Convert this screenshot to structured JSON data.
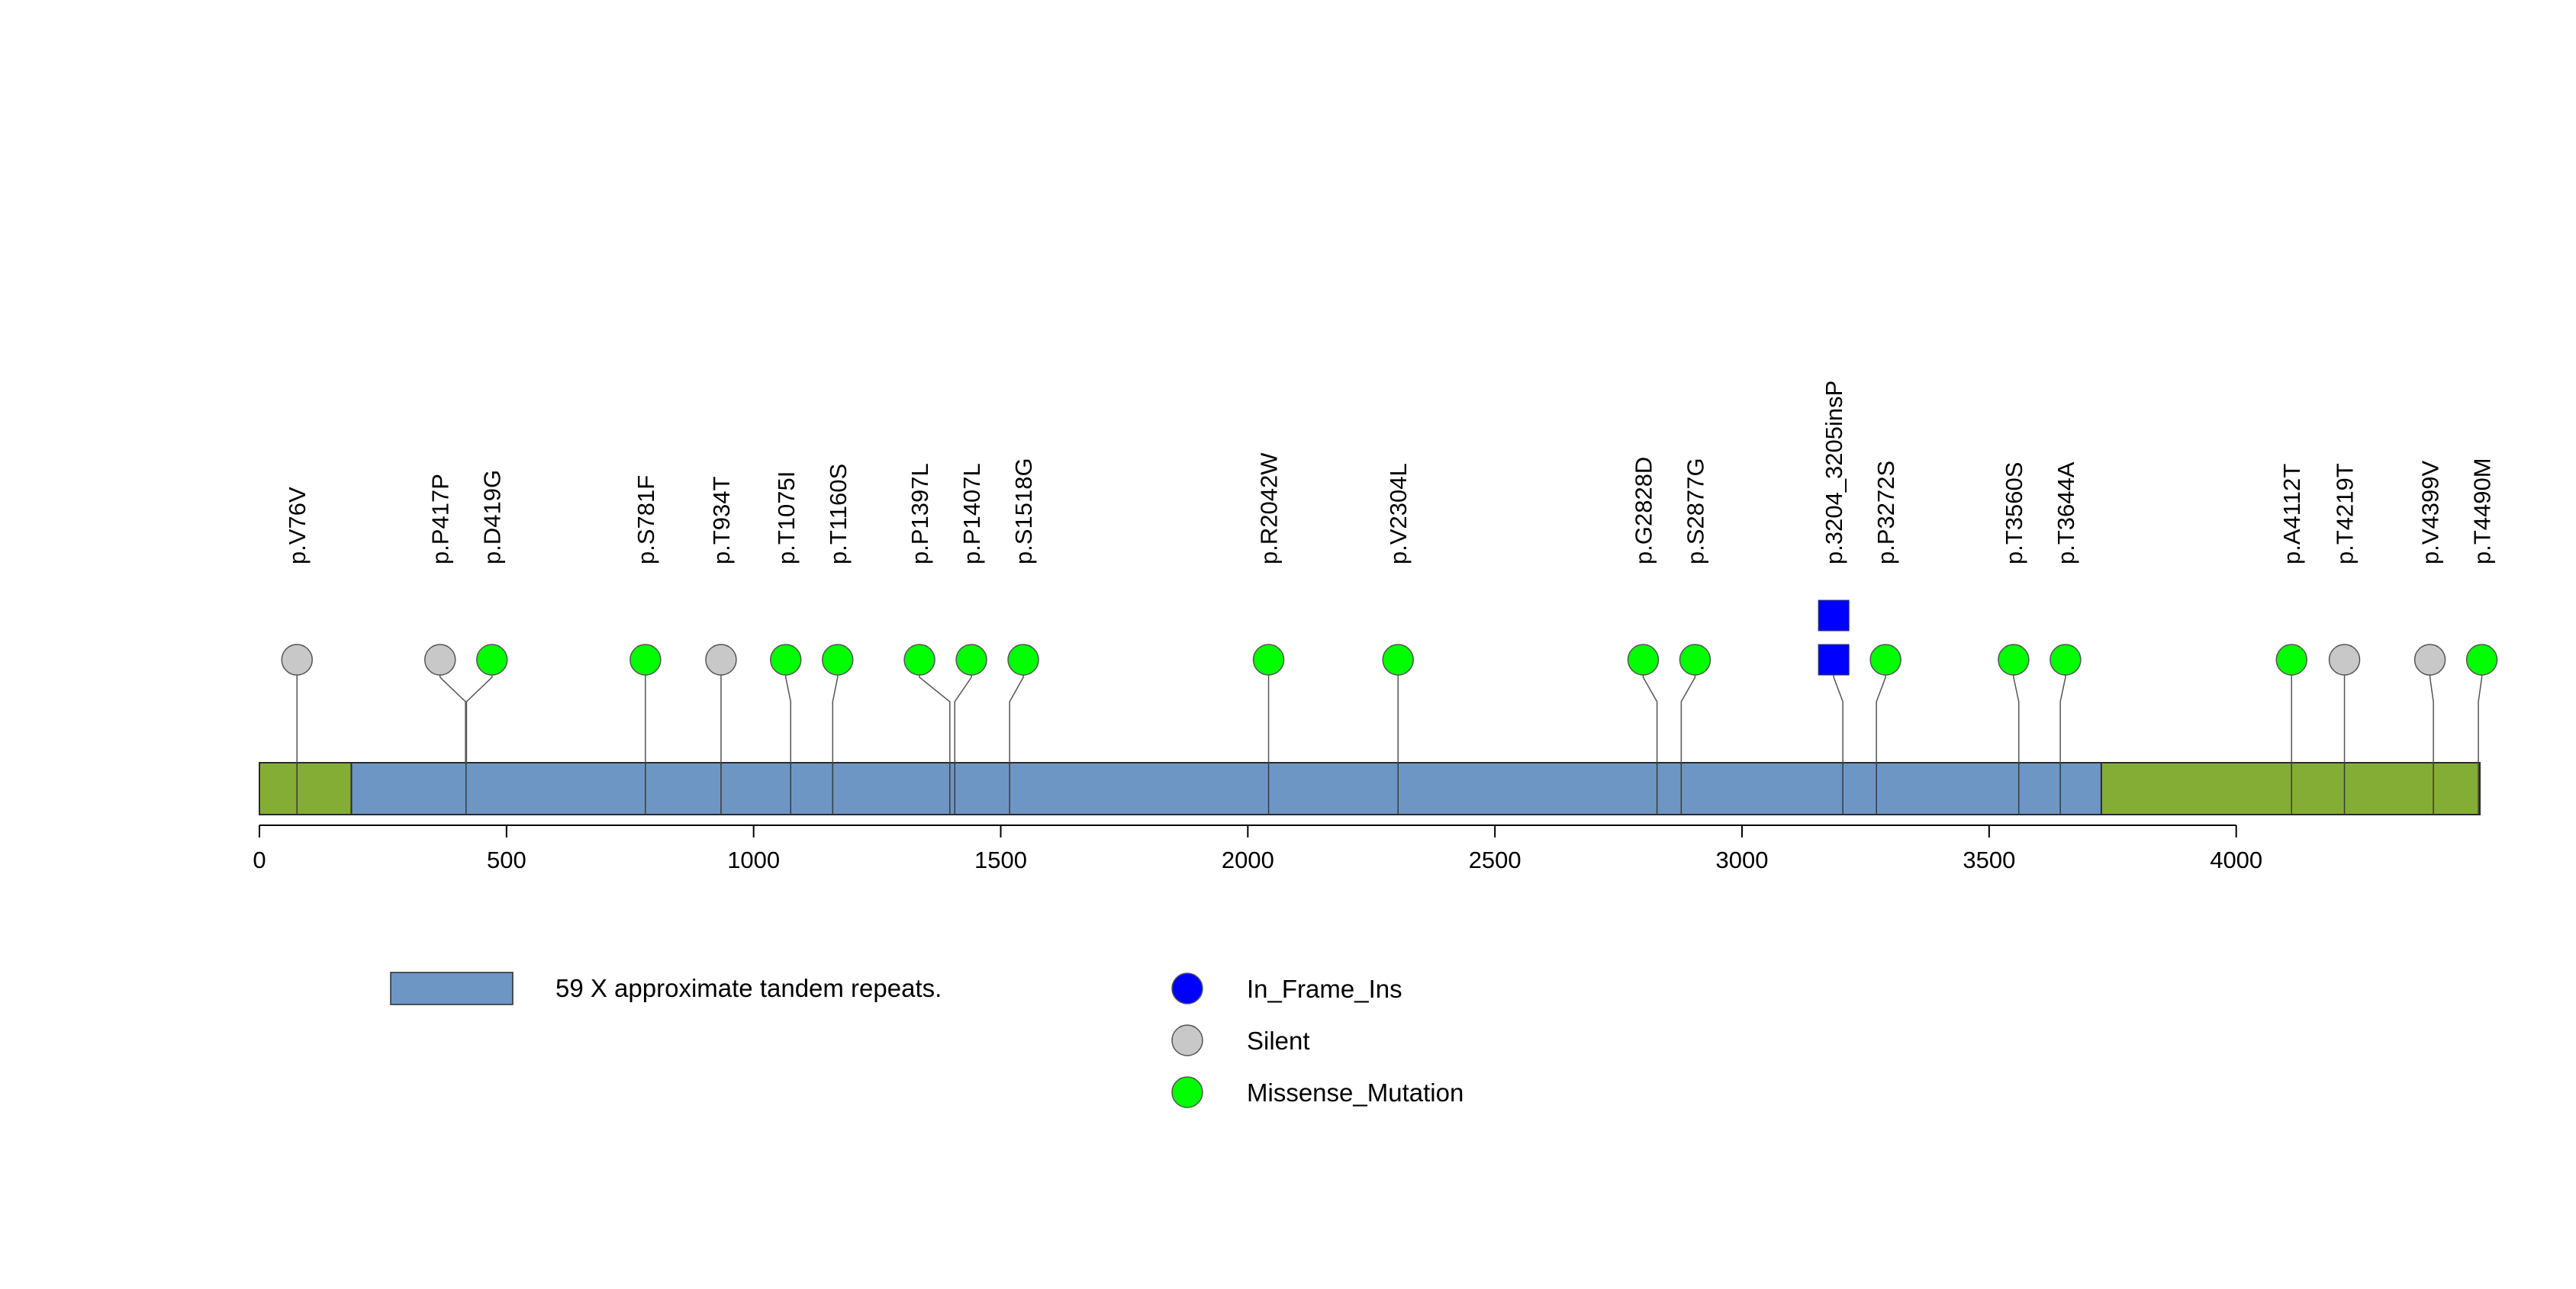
{
  "chart_data": {
    "type": "lollipop",
    "title": "",
    "xlabel": "",
    "ylabel": "",
    "xlim": [
      0,
      4493
    ],
    "ticks": [
      "0",
      "500",
      "1000",
      "1500",
      "2000",
      "2500",
      "3000",
      "3500",
      "4000"
    ],
    "tick_values": [
      0,
      500,
      1000,
      1500,
      2000,
      2500,
      3000,
      3500,
      4000
    ],
    "protein_length": 4493,
    "domains": [
      {
        "name": "59 X approximate tandem repeats.",
        "start": 186,
        "end": 3727,
        "color": "#6e96c4"
      }
    ],
    "protein_color": "#84ad35",
    "domain_dividers": [
      76,
      418,
      781,
      934,
      1075,
      1160,
      1397,
      1407,
      1518,
      2042,
      2304,
      2828,
      2877,
      3204,
      3272,
      3560,
      3644,
      4112,
      4219,
      4399,
      4490
    ],
    "mutations": [
      {
        "label": "p.V76V",
        "pos": 76,
        "type": "Silent",
        "count": 1
      },
      {
        "label": "p.P417P",
        "pos": 417,
        "type": "Silent",
        "count": 1
      },
      {
        "label": "p.D419G",
        "pos": 419,
        "type": "Missense_Mutation",
        "count": 1
      },
      {
        "label": "p.S781F",
        "pos": 781,
        "type": "Missense_Mutation",
        "count": 1
      },
      {
        "label": "p.T934T",
        "pos": 934,
        "type": "Silent",
        "count": 1
      },
      {
        "label": "p.T1075I",
        "pos": 1075,
        "type": "Missense_Mutation",
        "count": 1
      },
      {
        "label": "p.T1160S",
        "pos": 1160,
        "type": "Missense_Mutation",
        "count": 1
      },
      {
        "label": "p.P1397L",
        "pos": 1397,
        "type": "Missense_Mutation",
        "count": 1
      },
      {
        "label": "p.P1407L",
        "pos": 1407,
        "type": "Missense_Mutation",
        "count": 1
      },
      {
        "label": "p.S1518G",
        "pos": 1518,
        "type": "Missense_Mutation",
        "count": 1
      },
      {
        "label": "p.R2042W",
        "pos": 2042,
        "type": "Missense_Mutation",
        "count": 1
      },
      {
        "label": "p.V2304L",
        "pos": 2304,
        "type": "Missense_Mutation",
        "count": 1
      },
      {
        "label": "p.G2828D",
        "pos": 2828,
        "type": "Missense_Mutation",
        "count": 1
      },
      {
        "label": "p.S2877G",
        "pos": 2877,
        "type": "Missense_Mutation",
        "count": 1
      },
      {
        "label": "p.3204_3205insP",
        "pos": 3204,
        "type": "In_Frame_Ins",
        "count": 2
      },
      {
        "label": "p.P3272S",
        "pos": 3272,
        "type": "Missense_Mutation",
        "count": 1
      },
      {
        "label": "p.T3560S",
        "pos": 3560,
        "type": "Missense_Mutation",
        "count": 1
      },
      {
        "label": "p.T3644A",
        "pos": 3644,
        "type": "Missense_Mutation",
        "count": 1
      },
      {
        "label": "p.A4112T",
        "pos": 4112,
        "type": "Missense_Mutation",
        "count": 1
      },
      {
        "label": "p.T4219T",
        "pos": 4219,
        "type": "Silent",
        "count": 1
      },
      {
        "label": "p.V4399V",
        "pos": 4399,
        "type": "Silent",
        "count": 1
      },
      {
        "label": "p.T4490M",
        "pos": 4490,
        "type": "Missense_Mutation",
        "count": 1
      }
    ],
    "type_colors": {
      "In_Frame_Ins": "#0000ff",
      "Silent": "#c8c8c8",
      "Missense_Mutation": "#00ff00"
    },
    "legend": {
      "domain_label": "59 X approximate tandem repeats.",
      "entries": [
        {
          "name": "In_Frame_Ins",
          "color": "#0000ff"
        },
        {
          "name": "Silent",
          "color": "#c8c8c8"
        },
        {
          "name": "Missense_Mutation",
          "color": "#00ff00"
        }
      ]
    }
  }
}
